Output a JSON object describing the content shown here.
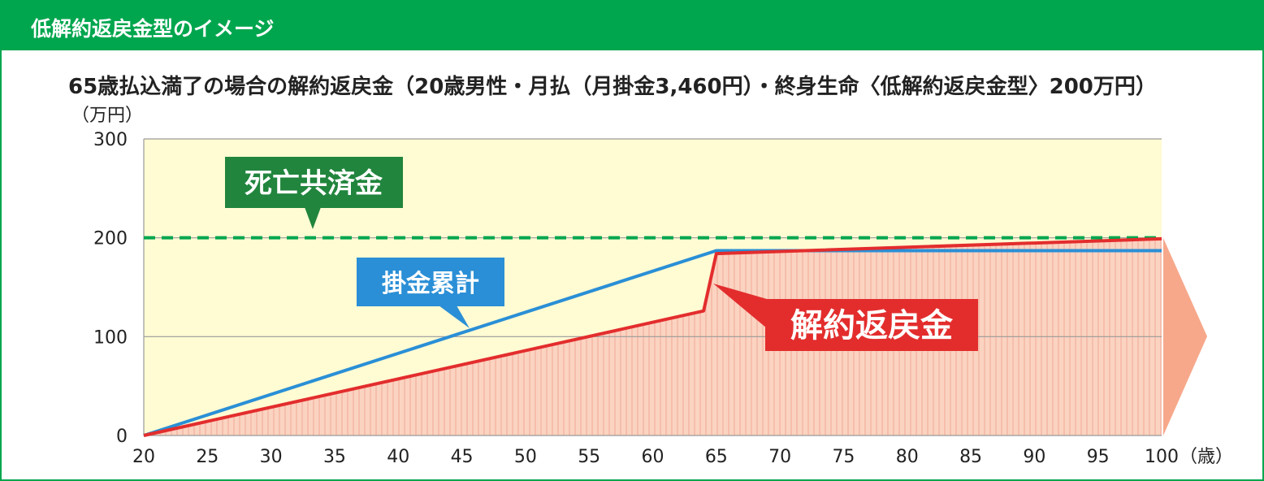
{
  "header": {
    "title": "低解約返戻金型のイメージ"
  },
  "chart_data": {
    "type": "line",
    "title": "65歳払込満了の場合の解約返戻金（20歳男性・月払（月掛金3,460円）・終身生命〈低解約返戻金型〉200万円）",
    "ylabel": "（万円）",
    "xlabel": "（歳）",
    "xlim": [
      20,
      100
    ],
    "ylim": [
      0,
      300
    ],
    "x_ticks": [
      20,
      25,
      30,
      35,
      40,
      45,
      50,
      55,
      60,
      65,
      70,
      75,
      80,
      85,
      90,
      95,
      100
    ],
    "y_ticks": [
      0,
      100,
      200,
      300
    ],
    "grid": true,
    "series": [
      {
        "name": "死亡共済金",
        "style": "dashed",
        "color": "#00a64e",
        "points": [
          [
            20,
            200
          ],
          [
            100,
            200
          ]
        ]
      },
      {
        "name": "掛金累計",
        "style": "solid",
        "color": "#2a8fd6",
        "points": [
          [
            20,
            0
          ],
          [
            65,
            187
          ],
          [
            100,
            187
          ]
        ]
      },
      {
        "name": "解約返戻金",
        "style": "solid-area",
        "color": "#e32d2d",
        "fill": "#fbd3c1",
        "points": [
          [
            20,
            0
          ],
          [
            64,
            126
          ],
          [
            65,
            184
          ],
          [
            100,
            199
          ]
        ]
      }
    ],
    "callouts": [
      {
        "label": "死亡共済金",
        "color": "#21853d"
      },
      {
        "label": "掛金累計",
        "color": "#2a8fd6"
      },
      {
        "label": "解約返戻金",
        "color": "#e32d2d"
      }
    ],
    "colors": {
      "plot_background": "#fffbd3",
      "grid": "#9a9a9a",
      "arrow": "#f7a88b"
    }
  }
}
